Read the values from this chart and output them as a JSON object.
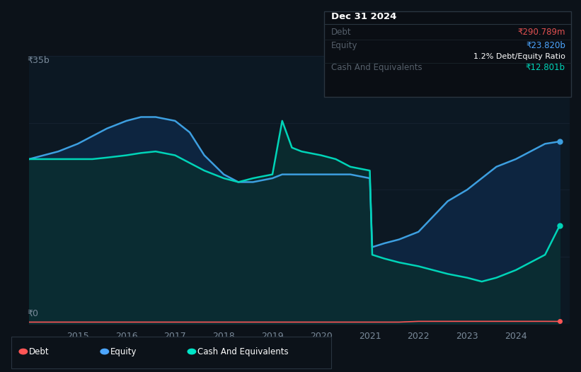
{
  "bg_color": "#0c1219",
  "plot_bg_color": "#0c1823",
  "title_box": {
    "date": "Dec 31 2024",
    "debt_label": "Debt",
    "debt_value": "₹290.789m",
    "equity_label": "Equity",
    "equity_value": "₹23.820b",
    "ratio_text": "1.2% Debt/Equity Ratio",
    "cash_label": "Cash And Equivalents",
    "cash_value": "₹12.801b"
  },
  "ylabel_top": "₹35b",
  "ylabel_bottom": "₹0",
  "x_ticks": [
    2015,
    2016,
    2017,
    2018,
    2019,
    2020,
    2021,
    2022,
    2023,
    2024
  ],
  "legend": [
    {
      "label": "Debt",
      "color": "#ff5555"
    },
    {
      "label": "Equity",
      "color": "#4da6ff"
    },
    {
      "label": "Cash And Equivalents",
      "color": "#00e5c8"
    }
  ],
  "equity_color": "#3d9fe0",
  "equity_fill_color": "#0d2a45",
  "cash_color": "#00d4b8",
  "cash_fill_color": "#0a2e2e",
  "debt_color": "#ff5555",
  "grid_color": "#182535",
  "years": [
    2014.0,
    2014.3,
    2014.6,
    2015.0,
    2015.3,
    2015.6,
    2016.0,
    2016.3,
    2016.6,
    2017.0,
    2017.3,
    2017.6,
    2018.0,
    2018.3,
    2018.6,
    2019.0,
    2019.2,
    2019.4,
    2019.6,
    2020.0,
    2020.3,
    2020.6,
    2021.0,
    2021.05,
    2021.3,
    2021.6,
    2022.0,
    2022.3,
    2022.6,
    2023.0,
    2023.3,
    2023.6,
    2024.0,
    2024.3,
    2024.6,
    2024.9
  ],
  "equity": [
    21.5,
    22.0,
    22.5,
    23.5,
    24.5,
    25.5,
    26.5,
    27.0,
    27.0,
    26.5,
    25.0,
    22.0,
    19.5,
    18.5,
    18.5,
    19.0,
    19.5,
    19.5,
    19.5,
    19.5,
    19.5,
    19.5,
    19.0,
    10.0,
    10.5,
    11.0,
    12.0,
    14.0,
    16.0,
    17.5,
    19.0,
    20.5,
    21.5,
    22.5,
    23.5,
    23.8
  ],
  "cash": [
    21.5,
    21.5,
    21.5,
    21.5,
    21.5,
    21.7,
    22.0,
    22.3,
    22.5,
    22.0,
    21.0,
    20.0,
    19.0,
    18.5,
    19.0,
    19.5,
    26.5,
    23.0,
    22.5,
    22.0,
    21.5,
    20.5,
    20.0,
    9.0,
    8.5,
    8.0,
    7.5,
    7.0,
    6.5,
    6.0,
    5.5,
    6.0,
    7.0,
    8.0,
    9.0,
    12.8
  ],
  "debt": [
    0.2,
    0.2,
    0.2,
    0.2,
    0.2,
    0.2,
    0.2,
    0.2,
    0.2,
    0.2,
    0.2,
    0.2,
    0.2,
    0.2,
    0.2,
    0.2,
    0.2,
    0.2,
    0.2,
    0.2,
    0.2,
    0.2,
    0.2,
    0.2,
    0.2,
    0.2,
    0.3,
    0.3,
    0.3,
    0.3,
    0.3,
    0.3,
    0.3,
    0.3,
    0.3,
    0.29
  ],
  "ylim": [
    0,
    35
  ],
  "xlim": [
    2014.0,
    2025.1
  ]
}
